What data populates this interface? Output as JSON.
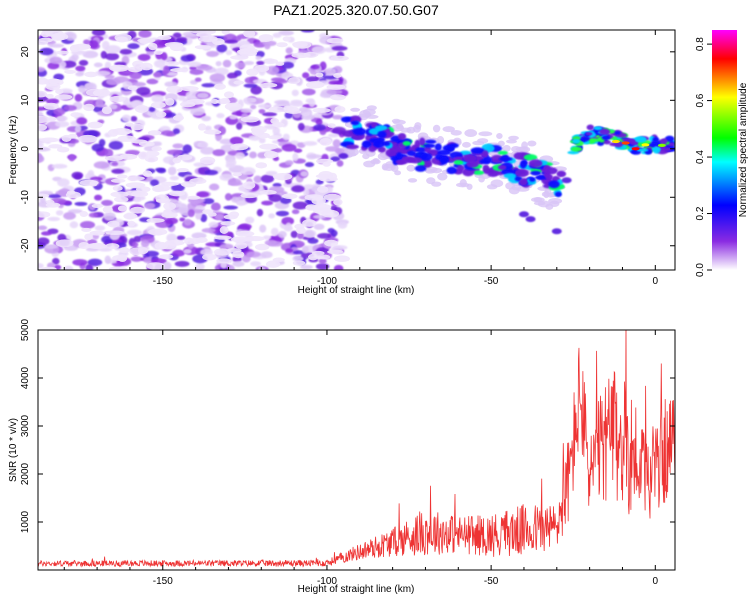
{
  "title": "PAZ1.2025.320.07.50.G07",
  "chart_data": [
    {
      "type": "heatmap",
      "name": "spectrogram",
      "xlabel": "Height of straight line (km)",
      "ylabel": "Frequency (Hz)",
      "xlim": [
        -188,
        6
      ],
      "ylim": [
        -25,
        24.5
      ],
      "xticks": [
        -150,
        -100,
        -50,
        0
      ],
      "xtick_labels": [
        "-150",
        "-100",
        "-50",
        "0"
      ],
      "yticks": [
        -20,
        -10,
        0,
        10,
        20
      ],
      "ytick_labels": [
        "-20",
        "-10",
        "0",
        "10",
        "20"
      ],
      "colorbar": {
        "label": "Normalized spectral amplitude",
        "range": [
          0,
          0.85
        ],
        "ticks": [
          0.0,
          0.2,
          0.4,
          0.6,
          0.8
        ],
        "tick_labels": [
          "0.0",
          "0.2",
          "0.4",
          "0.6",
          "0.8"
        ],
        "colormap": [
          "#ffffff",
          "#8a2be2",
          "#0000ff",
          "#00ffff",
          "#00ff00",
          "#ffff00",
          "#ff0000",
          "#ff00ff"
        ]
      },
      "features": {
        "noise_region_x": [
          -188,
          -95
        ],
        "signal_track": [
          {
            "x": -95,
            "freq": 3.5
          },
          {
            "x": -85,
            "freq": 2.5
          },
          {
            "x": -75,
            "freq": -1.0
          },
          {
            "x": -65,
            "freq": -1.5
          },
          {
            "x": -55,
            "freq": -2.0
          },
          {
            "x": -45,
            "freq": -3.0
          },
          {
            "x": -35,
            "freq": -5.5
          },
          {
            "x": -28,
            "freq": -7.0
          }
        ],
        "strong_track": [
          {
            "x": -25,
            "freq": 0.5
          },
          {
            "x": -20,
            "freq": 3.0
          },
          {
            "x": -15,
            "freq": 2.5
          },
          {
            "x": -10,
            "freq": 1.5
          },
          {
            "x": -5,
            "freq": 0.5
          },
          {
            "x": 0,
            "freq": 1.0
          },
          {
            "x": 5,
            "freq": 0.5
          }
        ]
      }
    },
    {
      "type": "line",
      "name": "snr",
      "xlabel": "Height of straight line (km)",
      "ylabel": "SNR (10 * v/v)",
      "xlim": [
        -188,
        6
      ],
      "ylim": [
        0,
        5000
      ],
      "xticks": [
        -150,
        -100,
        -50,
        0
      ],
      "xtick_labels": [
        "-150",
        "-100",
        "-50",
        "0"
      ],
      "yticks": [
        1000,
        2000,
        3000,
        4000,
        5000
      ],
      "ytick_labels": [
        "1000",
        "2000",
        "3000",
        "4000",
        "5000"
      ],
      "line_color": "#ee3333",
      "envelope": [
        {
          "x": -188,
          "base": 100,
          "amp": 120
        },
        {
          "x": -100,
          "base": 100,
          "amp": 140
        },
        {
          "x": -92,
          "base": 250,
          "amp": 300
        },
        {
          "x": -80,
          "base": 400,
          "amp": 600
        },
        {
          "x": -70,
          "base": 500,
          "amp": 1000
        },
        {
          "x": -60,
          "base": 500,
          "amp": 800
        },
        {
          "x": -50,
          "base": 450,
          "amp": 900
        },
        {
          "x": -40,
          "base": 500,
          "amp": 1100
        },
        {
          "x": -30,
          "base": 600,
          "amp": 1000
        },
        {
          "x": -26,
          "base": 1400,
          "amp": 2000
        },
        {
          "x": -23,
          "base": 3000,
          "amp": 2400
        },
        {
          "x": -20,
          "base": 1500,
          "amp": 1800
        },
        {
          "x": -14,
          "base": 2000,
          "amp": 2800
        },
        {
          "x": -8,
          "base": 1700,
          "amp": 2800
        },
        {
          "x": -2,
          "base": 1400,
          "amp": 1800
        },
        {
          "x": 3,
          "base": 1800,
          "amp": 2200
        },
        {
          "x": 6,
          "base": 2200,
          "amp": 1800
        }
      ]
    }
  ]
}
